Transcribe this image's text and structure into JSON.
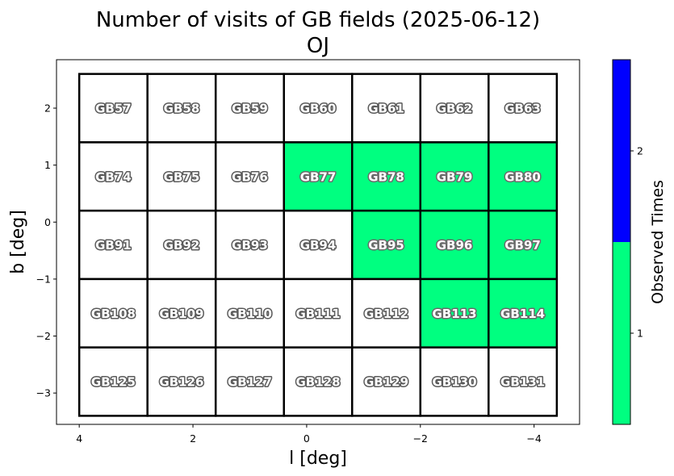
{
  "chart_data": {
    "type": "heatmap",
    "title": "Number of visits of GB fields (2025-06-12)",
    "subtitle": "OJ",
    "xlabel": "l [deg]",
    "ylabel": "b [deg]",
    "x_ticks": [
      "4",
      "2",
      "0",
      "−2",
      "−4"
    ],
    "x_tick_values": [
      4,
      2,
      0,
      -2,
      -4
    ],
    "y_ticks": [
      "2",
      "1",
      "0",
      "−1",
      "−2",
      "−3"
    ],
    "y_tick_values": [
      2,
      1,
      0,
      -1,
      -2,
      -3
    ],
    "xlim": [
      4.4,
      -4.8
    ],
    "ylim": [
      -3.55,
      2.85
    ],
    "colorbar": {
      "label": "Observed Times",
      "ticks": [
        "1",
        "2"
      ],
      "tick_values": [
        1,
        2
      ],
      "range": [
        0.5,
        2.5
      ],
      "colors": [
        "#00ff80",
        "#0000ff"
      ]
    },
    "colors": {
      "unobserved": "#ffffff",
      "observed_once": "#00ff80"
    },
    "grid": {
      "l_edges": [
        4.0,
        2.8,
        1.6,
        0.4,
        -0.8,
        -2.0,
        -3.2,
        -4.4
      ],
      "b_edges": [
        2.6,
        1.4,
        0.2,
        -1.0,
        -2.2,
        -3.4
      ]
    },
    "fields": [
      {
        "name": "GB57",
        "value": 0
      },
      {
        "name": "GB58",
        "value": 0
      },
      {
        "name": "GB59",
        "value": 0
      },
      {
        "name": "GB60",
        "value": 0
      },
      {
        "name": "GB61",
        "value": 0
      },
      {
        "name": "GB62",
        "value": 0
      },
      {
        "name": "GB63",
        "value": 0
      },
      {
        "name": "GB74",
        "value": 0
      },
      {
        "name": "GB75",
        "value": 0
      },
      {
        "name": "GB76",
        "value": 0
      },
      {
        "name": "GB77",
        "value": 1
      },
      {
        "name": "GB78",
        "value": 1
      },
      {
        "name": "GB79",
        "value": 1
      },
      {
        "name": "GB80",
        "value": 1
      },
      {
        "name": "GB91",
        "value": 0
      },
      {
        "name": "GB92",
        "value": 0
      },
      {
        "name": "GB93",
        "value": 0
      },
      {
        "name": "GB94",
        "value": 0
      },
      {
        "name": "GB95",
        "value": 1
      },
      {
        "name": "GB96",
        "value": 1
      },
      {
        "name": "GB97",
        "value": 1
      },
      {
        "name": "GB108",
        "value": 0
      },
      {
        "name": "GB109",
        "value": 0
      },
      {
        "name": "GB110",
        "value": 0
      },
      {
        "name": "GB111",
        "value": 0
      },
      {
        "name": "GB112",
        "value": 0
      },
      {
        "name": "GB113",
        "value": 1
      },
      {
        "name": "GB114",
        "value": 1
      },
      {
        "name": "GB125",
        "value": 0
      },
      {
        "name": "GB126",
        "value": 0
      },
      {
        "name": "GB127",
        "value": 0
      },
      {
        "name": "GB128",
        "value": 0
      },
      {
        "name": "GB129",
        "value": 0
      },
      {
        "name": "GB130",
        "value": 0
      },
      {
        "name": "GB131",
        "value": 0
      }
    ]
  }
}
